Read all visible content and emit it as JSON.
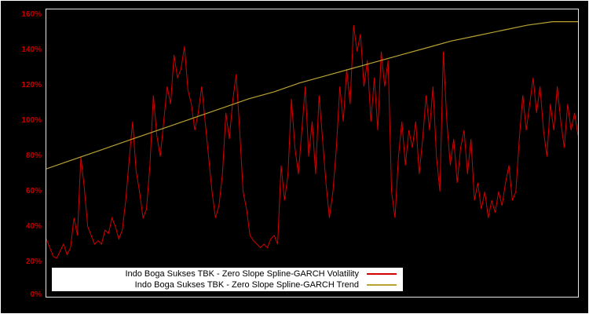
{
  "chart_data": {
    "type": "line",
    "title": "",
    "xlabel": "",
    "ylabel": "",
    "ylim": [
      0,
      160
    ],
    "grid": false,
    "legend_position": "bottom-center",
    "background_color": "#000000",
    "axis_box_color": "#e6e6e6",
    "tick_label_color": "#c00000",
    "ytick_labels": [
      "160%",
      "140%",
      "120%",
      "100%",
      "80%",
      "60%",
      "40%",
      "20%",
      "0%"
    ],
    "series": [
      {
        "name": "Indo Boga Sukses TBK - Zero Slope Spline-GARCH Volatility",
        "color": "#d40000",
        "values": [
          33,
          28,
          23,
          22,
          26,
          30,
          24,
          28,
          45,
          35,
          80,
          62,
          40,
          35,
          30,
          32,
          30,
          38,
          36,
          45,
          40,
          33,
          38,
          55,
          78,
          100,
          72,
          60,
          45,
          50,
          75,
          115,
          92,
          80,
          100,
          120,
          110,
          138,
          125,
          130,
          143,
          118,
          110,
          95,
          105,
          120,
          100,
          80,
          60,
          45,
          52,
          70,
          105,
          90,
          112,
          127,
          95,
          60,
          50,
          35,
          32,
          30,
          28,
          30,
          28,
          33,
          35,
          30,
          75,
          55,
          70,
          113,
          85,
          70,
          95,
          120,
          80,
          100,
          70,
          115,
          90,
          65,
          45,
          60,
          85,
          120,
          100,
          130,
          110,
          155,
          140,
          150,
          120,
          135,
          100,
          125,
          95,
          140,
          120,
          135,
          60,
          45,
          80,
          100,
          75,
          95,
          85,
          100,
          70,
          90,
          115,
          95,
          120,
          80,
          60,
          140,
          100,
          75,
          90,
          65,
          85,
          95,
          70,
          90,
          55,
          65,
          50,
          60,
          45,
          55,
          48,
          60,
          52,
          65,
          75,
          55,
          60,
          90,
          115,
          95,
          110,
          125,
          105,
          120,
          95,
          80,
          110,
          95,
          120,
          100,
          85,
          110,
          95,
          105,
          92
        ]
      },
      {
        "name": "Indo Boga Sukses TBK - Zero Slope Spline-GARCH Trend",
        "color": "#b8a232",
        "values": [
          73,
          78,
          83,
          88,
          93,
          98,
          103,
          108,
          113,
          117,
          122,
          126,
          130,
          134,
          138,
          142,
          146,
          149,
          152,
          155,
          157,
          157
        ]
      }
    ]
  }
}
